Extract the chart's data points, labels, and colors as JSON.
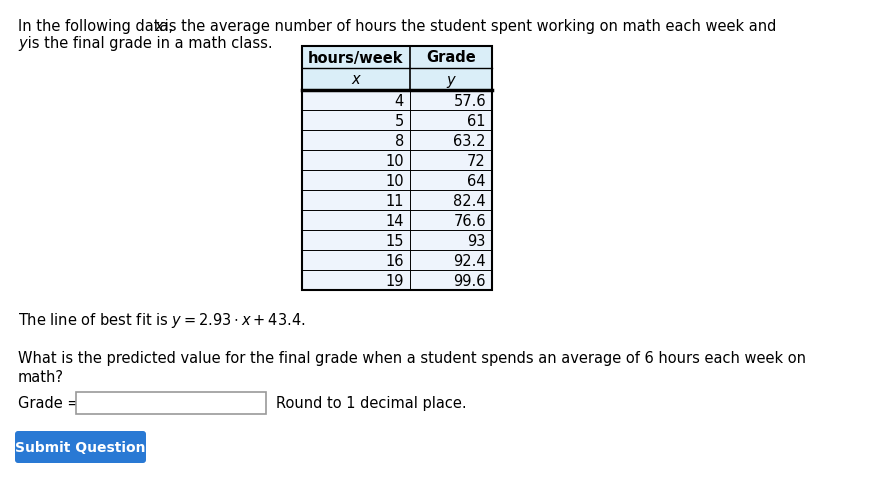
{
  "intro_line1": "In the following data, ",
  "intro_line1_italic": "x",
  "intro_line1_rest": " is the average number of hours the student spent working on math each week and",
  "intro_line2_italic": "y",
  "intro_line2_rest": " is the final grade in a math class.",
  "table_header_col1": "hours/week",
  "table_header_col1_sub": "x",
  "table_header_col2": "Grade",
  "table_header_col2_sub": "y",
  "table_data_x": [
    4,
    5,
    8,
    10,
    10,
    11,
    14,
    15,
    16,
    19
  ],
  "table_data_y": [
    57.6,
    61,
    63.2,
    72,
    64,
    82.4,
    76.6,
    93,
    92.4,
    99.6
  ],
  "best_fit_prefix": "The line of best fit is ",
  "best_fit_equation": "$y = 2.93 \\cdot x + 43.4.$",
  "question_line1": "What is the predicted value for the final grade when a student spends an average of 6 hours each week on",
  "question_line2": "math?",
  "grade_label": "Grade =",
  "round_text": "Round to 1 decimal place.",
  "button_text": "Submit Question",
  "button_color": "#2979d4",
  "button_text_color": "#ffffff",
  "background_color": "#ffffff",
  "table_header_bg": "#daeef8",
  "table_row_bg": "#eef4fc",
  "table_border_color": "#000000",
  "text_color": "#000000",
  "body_fs": 10.5,
  "table_fs": 10.5
}
